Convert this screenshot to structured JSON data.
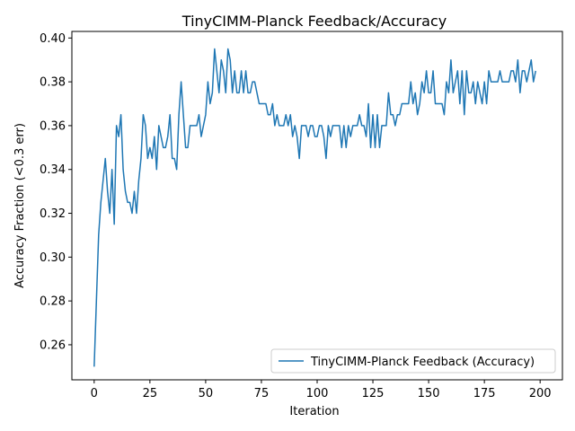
{
  "chart_data": {
    "type": "line",
    "title": "TinyCIMM-Planck Feedback/Accuracy",
    "xlabel": "Iteration",
    "ylabel": "Accuracy Fraction (<0.3 err)",
    "xlim": [
      -10,
      210
    ],
    "ylim": [
      0.244,
      0.403
    ],
    "xticks": [
      0,
      25,
      50,
      75,
      100,
      125,
      150,
      175,
      200
    ],
    "yticks": [
      0.26,
      0.28,
      0.3,
      0.32,
      0.34,
      0.36,
      0.38,
      0.4
    ],
    "ytick_labels": [
      "0.26",
      "0.28",
      "0.30",
      "0.32",
      "0.34",
      "0.36",
      "0.38",
      "0.40"
    ],
    "grid": false,
    "legend_position": "lower-right",
    "series": [
      {
        "name": "TinyCIMM-Planck Feedback (Accuracy)",
        "color": "#1f77b4",
        "y": [
          0.25,
          0.28,
          0.31,
          0.325,
          0.335,
          0.345,
          0.33,
          0.32,
          0.34,
          0.315,
          0.36,
          0.355,
          0.365,
          0.34,
          0.33,
          0.325,
          0.325,
          0.32,
          0.33,
          0.32,
          0.335,
          0.345,
          0.365,
          0.36,
          0.345,
          0.35,
          0.345,
          0.355,
          0.34,
          0.36,
          0.355,
          0.35,
          0.35,
          0.355,
          0.365,
          0.345,
          0.345,
          0.34,
          0.365,
          0.38,
          0.365,
          0.35,
          0.35,
          0.36,
          0.36,
          0.36,
          0.36,
          0.365,
          0.355,
          0.36,
          0.365,
          0.38,
          0.37,
          0.375,
          0.395,
          0.385,
          0.375,
          0.39,
          0.385,
          0.375,
          0.395,
          0.39,
          0.375,
          0.385,
          0.375,
          0.375,
          0.385,
          0.375,
          0.385,
          0.375,
          0.375,
          0.38,
          0.38,
          0.375,
          0.37,
          0.37,
          0.37,
          0.37,
          0.365,
          0.365,
          0.37,
          0.36,
          0.365,
          0.36,
          0.36,
          0.36,
          0.365,
          0.36,
          0.365,
          0.355,
          0.36,
          0.355,
          0.345,
          0.36,
          0.36,
          0.36,
          0.355,
          0.36,
          0.36,
          0.355,
          0.355,
          0.36,
          0.36,
          0.355,
          0.345,
          0.36,
          0.355,
          0.36,
          0.36,
          0.36,
          0.36,
          0.35,
          0.36,
          0.35,
          0.36,
          0.355,
          0.36,
          0.36,
          0.36,
          0.365,
          0.36,
          0.36,
          0.355,
          0.37,
          0.35,
          0.365,
          0.35,
          0.365,
          0.35,
          0.36,
          0.36,
          0.36,
          0.375,
          0.365,
          0.365,
          0.36,
          0.365,
          0.365,
          0.37,
          0.37,
          0.37,
          0.37,
          0.38,
          0.37,
          0.375,
          0.365,
          0.37,
          0.38,
          0.375,
          0.385,
          0.375,
          0.375,
          0.385,
          0.37,
          0.37,
          0.37,
          0.37,
          0.365,
          0.38,
          0.375,
          0.39,
          0.375,
          0.38,
          0.385,
          0.37,
          0.385,
          0.365,
          0.385,
          0.375,
          0.375,
          0.38,
          0.37,
          0.38,
          0.375,
          0.37,
          0.38,
          0.37,
          0.385,
          0.38,
          0.38,
          0.38,
          0.38,
          0.385,
          0.38,
          0.38,
          0.38,
          0.38,
          0.385,
          0.385,
          0.38,
          0.39,
          0.375,
          0.385,
          0.385,
          0.38,
          0.385,
          0.39,
          0.38,
          0.385
        ]
      }
    ]
  }
}
